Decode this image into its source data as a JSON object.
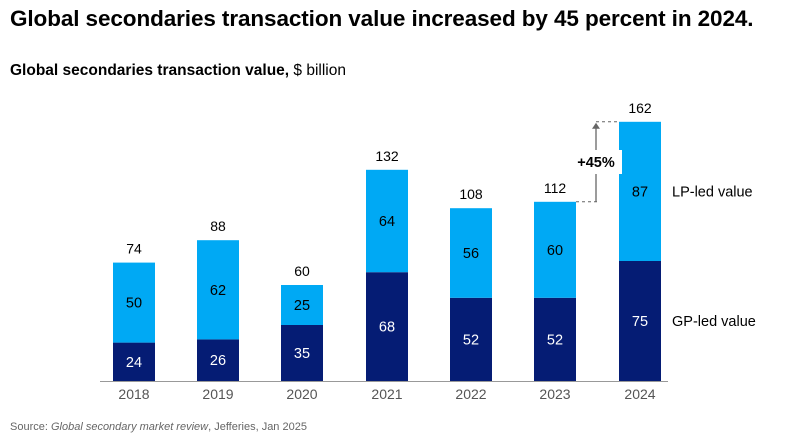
{
  "headline": "Global secondaries transaction value increased by 45 percent in 2024.",
  "subtitle": {
    "bold": "Global secondaries transaction value,",
    "unit": " $ billion"
  },
  "source": {
    "prefix": "Source: ",
    "title": "Global secondary market review",
    "suffix": ", Jefferies, Jan 2025"
  },
  "colors": {
    "gp": "#051C74",
    "lp": "#00A9F4",
    "axis": "#999999",
    "arrow": "#666666"
  },
  "chart_data": {
    "type": "bar",
    "stacked": true,
    "categories": [
      "2018",
      "2019",
      "2020",
      "2021",
      "2022",
      "2023",
      "2024"
    ],
    "series": [
      {
        "name": "GP-led value",
        "values": [
          24,
          26,
          35,
          68,
          52,
          52,
          75
        ]
      },
      {
        "name": "LP-led value",
        "values": [
          50,
          62,
          25,
          64,
          56,
          60,
          87
        ]
      }
    ],
    "totals": [
      74,
      88,
      60,
      132,
      108,
      112,
      162
    ],
    "annotation": "+45%",
    "legend_position": "right",
    "grid": false
  }
}
